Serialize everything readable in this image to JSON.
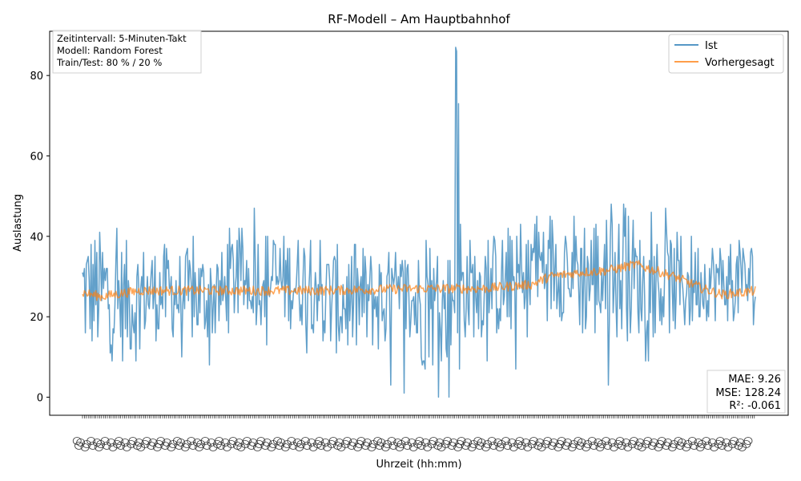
{
  "chart_data": {
    "type": "line",
    "title": "RF-Modell – Am Hauptbahnhof",
    "xlabel": "Uhrzeit (hh:mm)",
    "ylabel": "Auslastung",
    "ylim": [
      -4.5,
      91
    ],
    "yticks": [
      0,
      20,
      40,
      60,
      80
    ],
    "grid": false,
    "legend_position": "top-right",
    "n_points": 706,
    "x_tick_labels_note": "unreadable overlapping rotated time labels (one per 5-minute sample)",
    "series": [
      {
        "name": "Ist",
        "color": "#1f77b4",
        "segments": [
          {
            "from": 0,
            "to": 30,
            "base": 26,
            "amp": 16,
            "min": 5,
            "max": 43
          },
          {
            "from": 30,
            "to": 60,
            "base": 24,
            "amp": 15,
            "min": 5,
            "max": 43
          },
          {
            "from": 60,
            "to": 100,
            "base": 26,
            "amp": 12,
            "min": 10,
            "max": 38
          },
          {
            "from": 100,
            "to": 150,
            "base": 25,
            "amp": 12,
            "min": 7,
            "max": 45
          },
          {
            "from": 150,
            "to": 200,
            "base": 30,
            "amp": 12,
            "min": 11,
            "max": 47
          },
          {
            "from": 200,
            "to": 250,
            "base": 29,
            "amp": 12,
            "min": 11,
            "max": 46
          },
          {
            "from": 250,
            "to": 300,
            "base": 24,
            "amp": 14,
            "min": 0,
            "max": 38
          },
          {
            "from": 300,
            "to": 350,
            "base": 24,
            "amp": 13,
            "min": 0,
            "max": 43
          },
          {
            "from": 350,
            "to": 388,
            "base": 22,
            "amp": 15,
            "min": 0,
            "max": 42
          },
          {
            "from": 388,
            "to": 420,
            "base": 27,
            "amp": 13,
            "min": 7,
            "max": 48
          },
          {
            "from": 420,
            "to": 470,
            "base": 28,
            "amp": 13,
            "min": 2,
            "max": 51
          },
          {
            "from": 470,
            "to": 520,
            "base": 33,
            "amp": 14,
            "min": 2,
            "max": 53
          },
          {
            "from": 520,
            "to": 580,
            "base": 30,
            "amp": 16,
            "min": 2,
            "max": 54
          },
          {
            "from": 580,
            "to": 640,
            "base": 28,
            "amp": 13,
            "min": 2,
            "max": 51
          },
          {
            "from": 640,
            "to": 706,
            "base": 29,
            "amp": 10,
            "min": 1,
            "max": 44
          }
        ],
        "spikes": [
          {
            "index": 391,
            "value": 87
          },
          {
            "index": 392,
            "value": 86
          },
          {
            "index": 393,
            "value": 16
          },
          {
            "index": 394,
            "value": 73
          },
          {
            "index": 395,
            "value": 7
          },
          {
            "index": 396,
            "value": 43
          }
        ]
      },
      {
        "name": "Vorhergesagt",
        "color": "#ff7f0e",
        "knots": [
          [
            0,
            26
          ],
          [
            20,
            25
          ],
          [
            60,
            26.5
          ],
          [
            150,
            26.5
          ],
          [
            250,
            26.5
          ],
          [
            350,
            27
          ],
          [
            420,
            27
          ],
          [
            470,
            28
          ],
          [
            490,
            30
          ],
          [
            520,
            31
          ],
          [
            550,
            31.5
          ],
          [
            580,
            33
          ],
          [
            600,
            31.5
          ],
          [
            620,
            30
          ],
          [
            650,
            27
          ],
          [
            670,
            25.5
          ],
          [
            690,
            26
          ],
          [
            706,
            26.5
          ]
        ],
        "noise": 1.2
      }
    ],
    "legend": [
      {
        "label": "Ist",
        "color": "#1f77b4"
      },
      {
        "label": "Vorhergesagt",
        "color": "#ff7f0e"
      }
    ],
    "annotation_info": [
      "Zeitintervall: 5-Minuten-Takt",
      "Modell: Random Forest",
      "Train/Test: 80 % / 20 %"
    ],
    "annotation_metrics": [
      "MAE: 9.26",
      "MSE: 128.24",
      "R²: -0.061"
    ]
  }
}
